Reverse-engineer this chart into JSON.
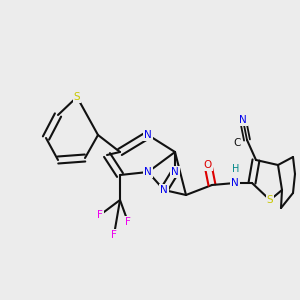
{
  "bg_color": "#ececec",
  "bond_color": "#111111",
  "bond_lw": 1.5,
  "fs": 7.5,
  "colors": {
    "S": "#c8c800",
    "N": "#0000ee",
    "O": "#dd0000",
    "F": "#ee00ee",
    "C": "#111111",
    "H": "#008888"
  }
}
